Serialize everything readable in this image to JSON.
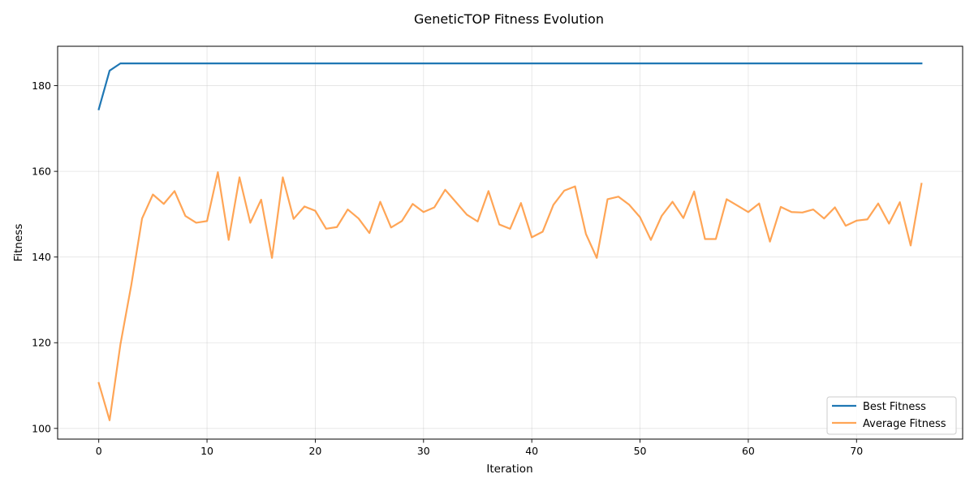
{
  "chart_data": {
    "type": "line",
    "title": "GeneticTOP Fitness Evolution",
    "xlabel": "Iteration",
    "ylabel": "Fitness",
    "xlim": [
      -3.8,
      79.8
    ],
    "ylim": [
      97.5,
      189.2
    ],
    "xticks": [
      0,
      10,
      20,
      30,
      40,
      50,
      60,
      70
    ],
    "yticks": [
      100,
      120,
      140,
      160,
      180
    ],
    "grid": true,
    "legend_position": "lower-right",
    "series": [
      {
        "name": "Best Fitness",
        "color": "#1f77b4",
        "opacity": 1,
        "values": [
          174.5,
          183.5,
          185.2,
          185.2,
          185.2,
          185.2,
          185.2,
          185.2,
          185.2,
          185.2,
          185.2,
          185.2,
          185.2,
          185.2,
          185.2,
          185.2,
          185.2,
          185.2,
          185.2,
          185.2,
          185.2,
          185.2,
          185.2,
          185.2,
          185.2,
          185.2,
          185.2,
          185.2,
          185.2,
          185.2,
          185.2,
          185.2,
          185.2,
          185.2,
          185.2,
          185.2,
          185.2,
          185.2,
          185.2,
          185.2,
          185.2,
          185.2,
          185.2,
          185.2,
          185.2,
          185.2,
          185.2,
          185.2,
          185.2,
          185.2,
          185.2,
          185.2,
          185.2,
          185.2,
          185.2,
          185.2,
          185.2,
          185.2,
          185.2,
          185.2,
          185.2,
          185.2,
          185.2,
          185.2,
          185.2,
          185.2,
          185.2,
          185.2,
          185.2,
          185.2,
          185.2,
          185.2,
          185.2,
          185.2,
          185.2,
          185.2,
          185.2
        ]
      },
      {
        "name": "Average Fitness",
        "color": "#ff7f0e",
        "opacity": 0.7,
        "values": [
          110.6,
          101.9,
          119.6,
          133.4,
          149.0,
          154.6,
          152.4,
          155.4,
          149.6,
          148.0,
          148.4,
          159.8,
          144.0,
          158.6,
          148.0,
          153.4,
          139.8,
          158.6,
          148.9,
          151.8,
          150.8,
          146.6,
          147.0,
          151.1,
          149.0,
          145.6,
          152.9,
          146.9,
          148.4,
          152.4,
          150.5,
          151.6,
          155.7,
          152.8,
          149.9,
          148.3,
          155.4,
          147.6,
          146.6,
          152.6,
          144.6,
          145.9,
          152.2,
          155.5,
          156.5,
          145.4,
          139.8,
          153.5,
          154.1,
          152.2,
          149.3,
          144.0,
          149.6,
          152.9,
          149.1,
          155.3,
          144.2,
          144.2,
          153.5,
          152.0,
          150.5,
          152.5,
          143.6,
          151.7,
          150.5,
          150.4,
          151.1,
          149.0,
          151.6,
          147.3,
          148.5,
          148.8,
          152.5,
          147.8,
          152.8,
          142.7,
          157.1
        ]
      }
    ]
  }
}
